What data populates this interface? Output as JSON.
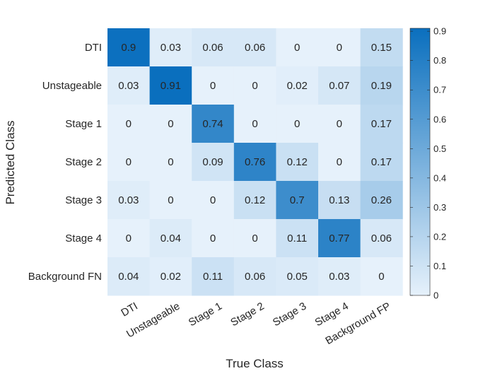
{
  "chart_data": {
    "type": "heatmap",
    "xlabel": "True Class",
    "ylabel": "Predicted Class",
    "x_categories": [
      "DTI",
      "Unstageable",
      "Stage 1",
      "Stage 2",
      "Stage 3",
      "Stage 4",
      "Background FP"
    ],
    "y_categories": [
      "DTI",
      "Unstageable",
      "Stage 1",
      "Stage 2",
      "Stage 3",
      "Stage 4",
      "Background FN"
    ],
    "values": [
      [
        0.9,
        0.03,
        0.06,
        0.06,
        0,
        0,
        0.15
      ],
      [
        0.03,
        0.91,
        0,
        0,
        0.02,
        0.07,
        0.19
      ],
      [
        0,
        0,
        0.74,
        0,
        0,
        0,
        0.17
      ],
      [
        0,
        0,
        0.09,
        0.76,
        0.12,
        0,
        0.17
      ],
      [
        0.03,
        0,
        0,
        0.12,
        0.7,
        0.13,
        0.26
      ],
      [
        0,
        0.04,
        0,
        0,
        0.11,
        0.77,
        0.06
      ],
      [
        0.04,
        0.02,
        0.11,
        0.06,
        0.05,
        0.03,
        0
      ]
    ],
    "colorbar": {
      "range": [
        0,
        0.91
      ],
      "ticks": [
        0,
        0.1,
        0.2,
        0.3,
        0.4,
        0.5,
        0.6,
        0.7,
        0.8,
        0.9
      ],
      "tick_labels": [
        "0",
        "0.1",
        "0.2",
        "0.3",
        "0.4",
        "0.5",
        "0.6",
        "0.7",
        "0.8",
        "0.9"
      ],
      "color_low": "#e6f1fb",
      "color_high": "#0a6fbe"
    },
    "grid": false,
    "legend": "colorbar-right"
  }
}
